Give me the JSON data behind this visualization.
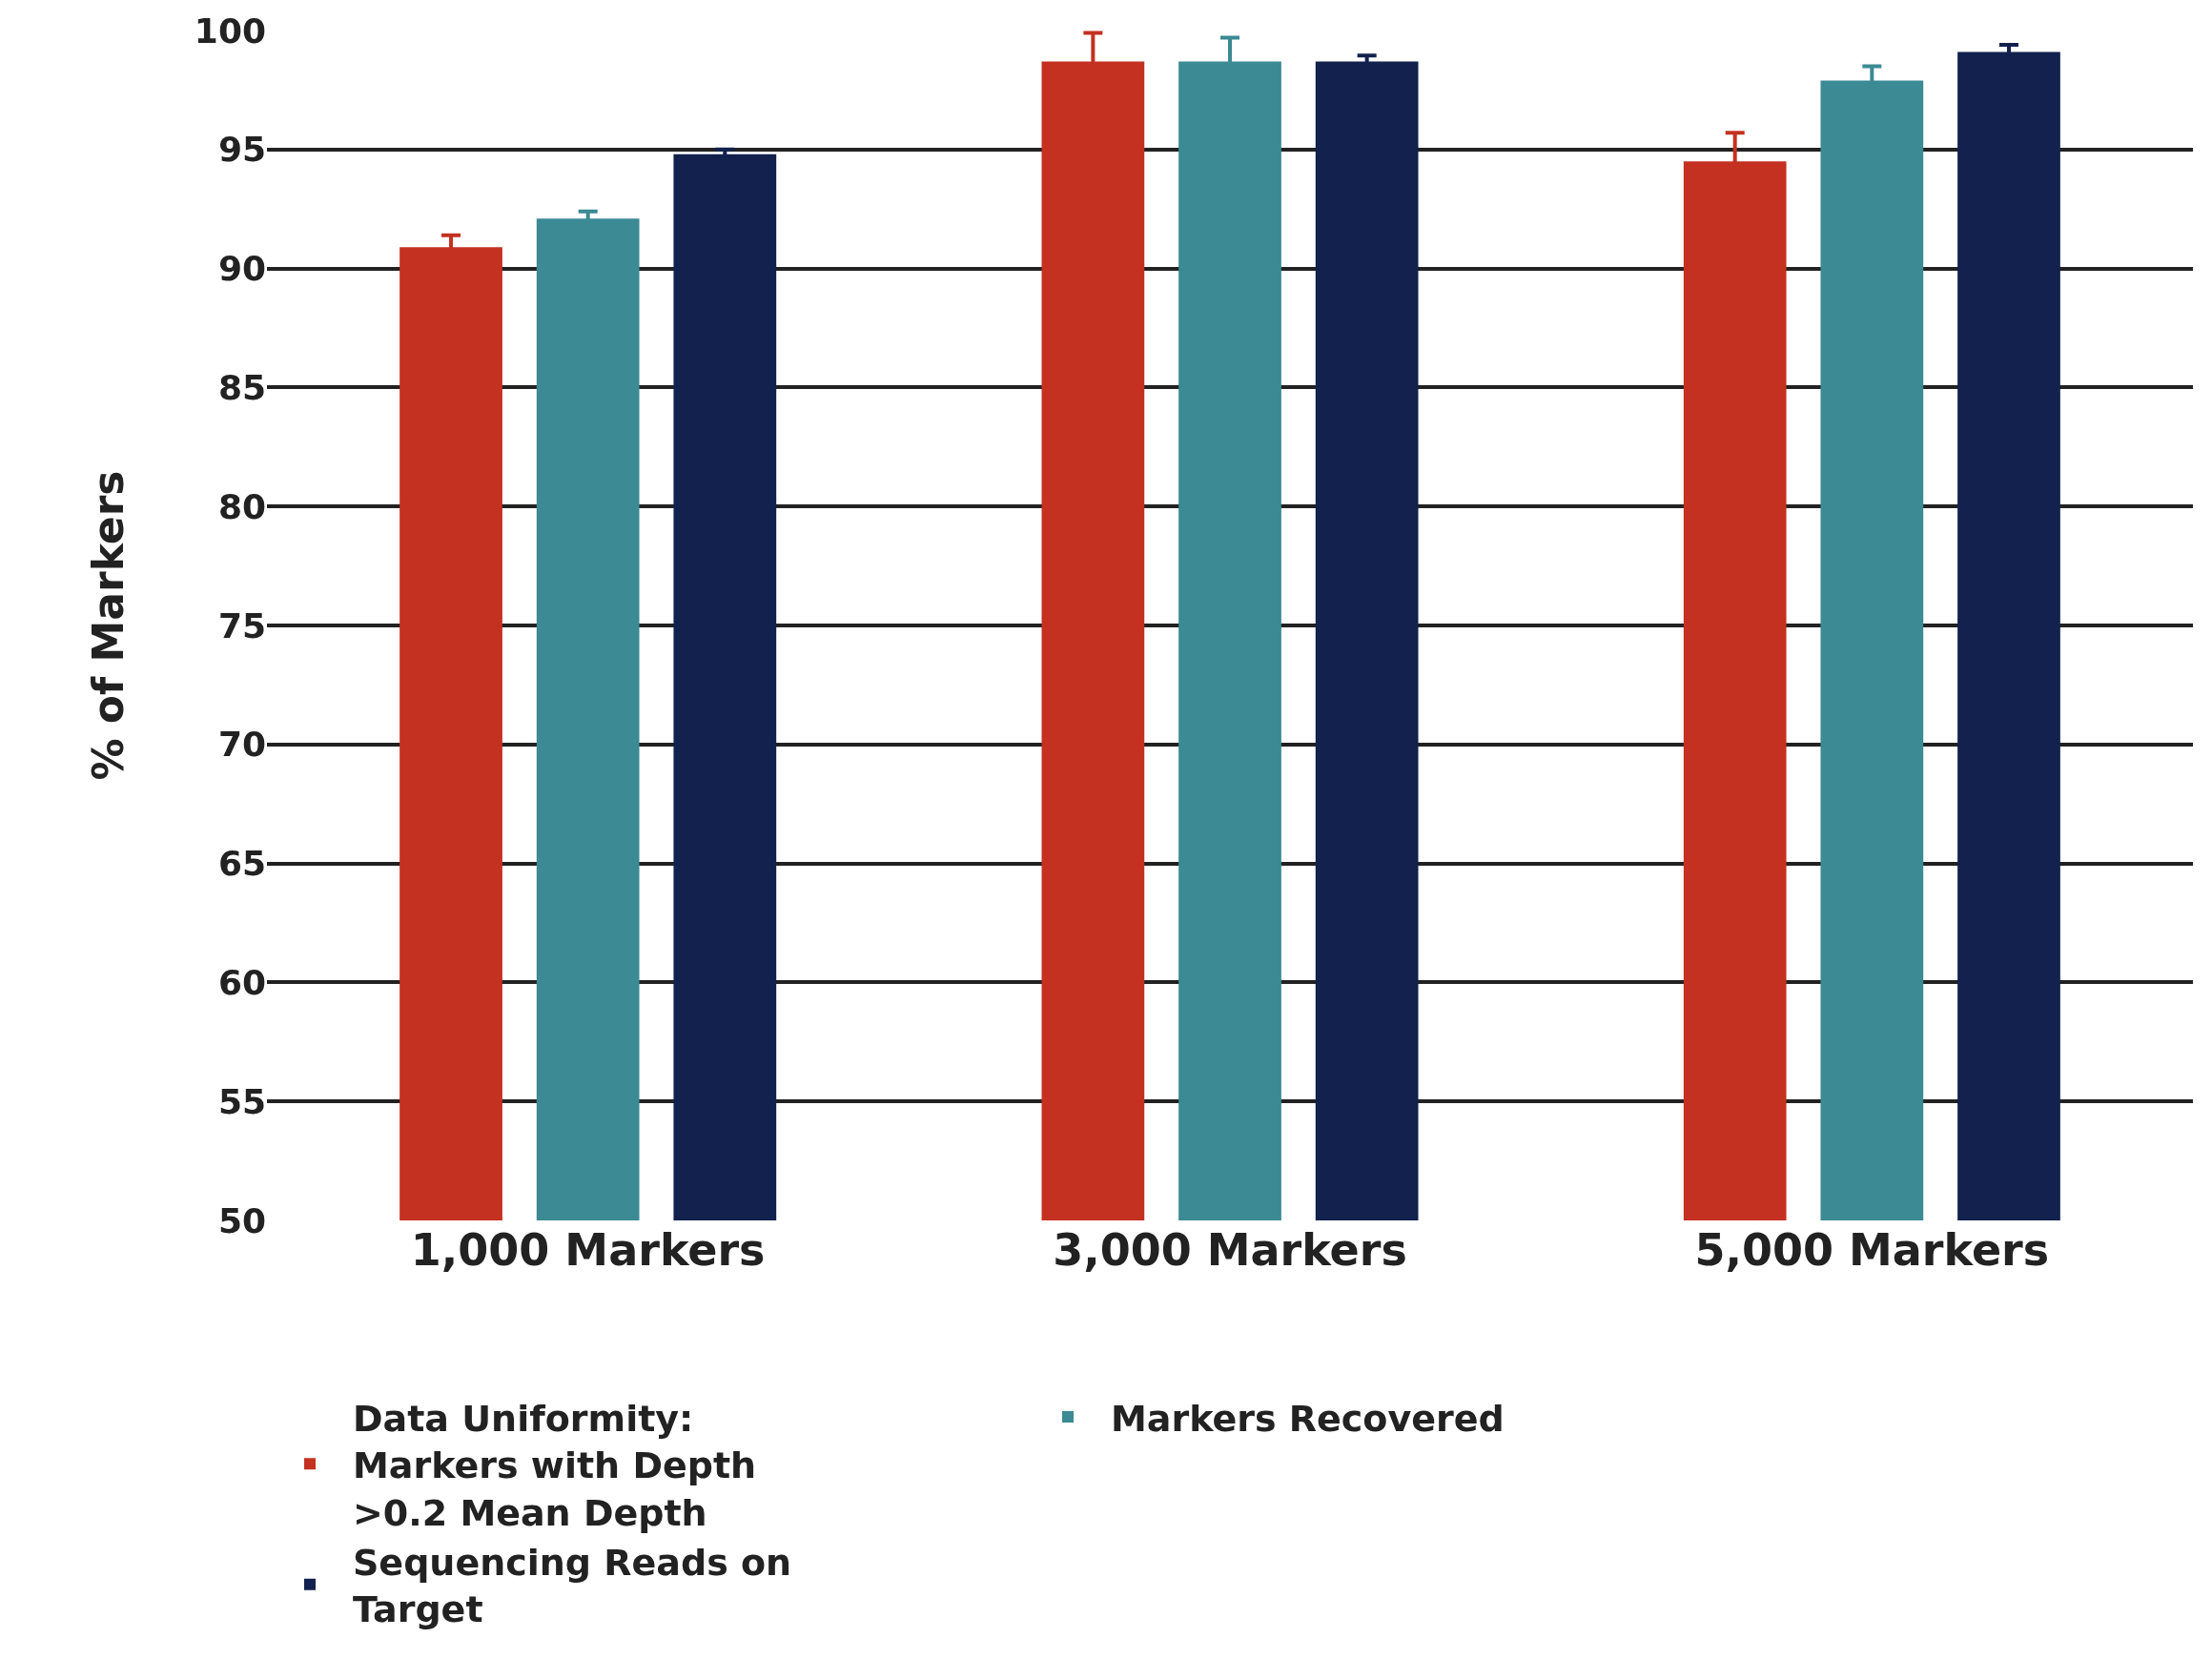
{
  "chart_data": {
    "type": "bar",
    "ylabel": "% of Markers",
    "categories": [
      "1,000 Markers",
      "3,000 Markers",
      "5,000 Markers"
    ],
    "series": [
      {
        "name": "Data Uniformity: Markers with Depth >0.2 Mean Depth",
        "color": "#c43120",
        "values": [
          90.9,
          98.7,
          94.5
        ],
        "errors": [
          0.5,
          1.2,
          1.2
        ]
      },
      {
        "name": "Markers Recovered",
        "color": "#3b8a94",
        "values": [
          92.1,
          98.7,
          97.9
        ],
        "errors": [
          0.3,
          1.0,
          0.6
        ]
      },
      {
        "name": "Sequencing Reads on Target",
        "color": "#12214d",
        "values": [
          94.8,
          98.7,
          99.1
        ],
        "errors": [
          0.2,
          0.25,
          0.3
        ]
      }
    ],
    "ylim": [
      50,
      100
    ],
    "yticks": [
      50,
      55,
      60,
      65,
      70,
      75,
      80,
      85,
      90,
      95,
      100
    ],
    "grid": "y",
    "legend": "bottom"
  }
}
